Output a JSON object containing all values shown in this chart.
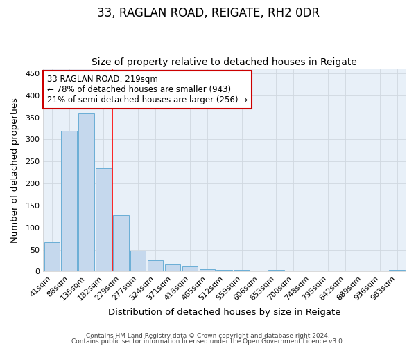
{
  "title": "33, RAGLAN ROAD, REIGATE, RH2 0DR",
  "subtitle": "Size of property relative to detached houses in Reigate",
  "xlabel": "Distribution of detached houses by size in Reigate",
  "ylabel": "Number of detached properties",
  "categories": [
    "41sqm",
    "88sqm",
    "135sqm",
    "182sqm",
    "229sqm",
    "277sqm",
    "324sqm",
    "371sqm",
    "418sqm",
    "465sqm",
    "512sqm",
    "559sqm",
    "606sqm",
    "653sqm",
    "700sqm",
    "748sqm",
    "795sqm",
    "842sqm",
    "889sqm",
    "936sqm",
    "983sqm"
  ],
  "values": [
    67,
    320,
    358,
    235,
    127,
    48,
    25,
    16,
    12,
    5,
    4,
    4,
    0,
    3,
    0,
    0,
    2,
    0,
    0,
    0,
    3
  ],
  "bar_color": "#c5d8ed",
  "bar_edge_color": "#6aaed6",
  "red_line_x": 3.5,
  "annotation_text": "33 RAGLAN ROAD: 219sqm\n← 78% of detached houses are smaller (943)\n21% of semi-detached houses are larger (256) →",
  "annotation_box_color": "#ffffff",
  "annotation_box_edge": "#cc0000",
  "ylim": [
    0,
    460
  ],
  "yticks": [
    0,
    50,
    100,
    150,
    200,
    250,
    300,
    350,
    400,
    450
  ],
  "bg_color": "#ffffff",
  "plot_bg_color": "#e8f0f8",
  "footnote1": "Contains HM Land Registry data © Crown copyright and database right 2024.",
  "footnote2": "Contains public sector information licensed under the Open Government Licence v3.0.",
  "title_fontsize": 12,
  "subtitle_fontsize": 10,
  "label_fontsize": 9.5,
  "tick_fontsize": 8,
  "annot_fontsize": 8.5
}
